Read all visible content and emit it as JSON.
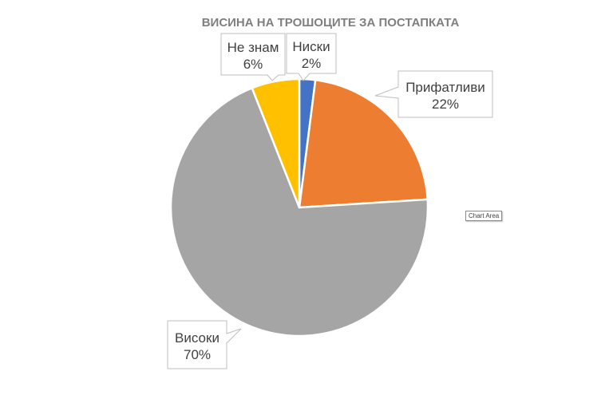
{
  "chart_data": {
    "type": "pie",
    "title": "ВИСИНА НА ТРОШОЦИТЕ ЗА ПОСТАПКАТА",
    "categories": [
      "Ниски",
      "Прифатливи",
      "Високи",
      "Не знам"
    ],
    "values": [
      2,
      22,
      70,
      6
    ],
    "percent_labels": [
      "2%",
      "22%",
      "70%",
      "6%"
    ],
    "colors": [
      "#4472c4",
      "#ed7d31",
      "#a5a5a5",
      "#ffc000"
    ],
    "start_angle_deg": 0,
    "direction": "clockwise",
    "legend": "none",
    "data_labels": "callouts"
  },
  "tooltip": {
    "text": "Chart Area"
  }
}
